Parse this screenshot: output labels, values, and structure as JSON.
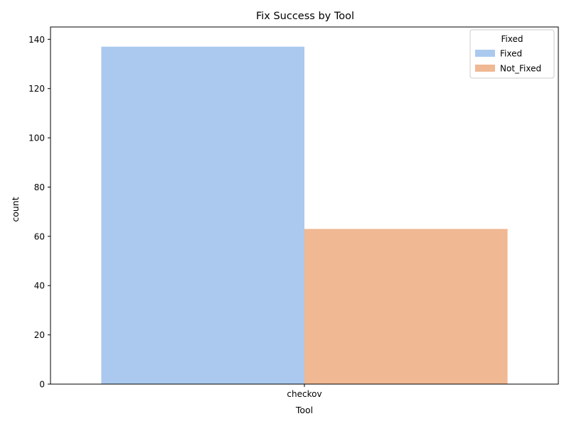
{
  "chart_data": {
    "type": "bar",
    "title": "Fix Success by Tool",
    "xlabel": "Tool",
    "ylabel": "count",
    "categories": [
      "checkov"
    ],
    "series": [
      {
        "name": "Fixed",
        "values": [
          137
        ],
        "color": "#abc9ee"
      },
      {
        "name": "Not_Fixed",
        "values": [
          63
        ],
        "color": "#f0b893"
      }
    ],
    "ylim": [
      0,
      145
    ],
    "yticks": [
      "0",
      "20",
      "40",
      "60",
      "80",
      "100",
      "120",
      "140"
    ],
    "legend": {
      "title": "Fixed",
      "placement": "top-right"
    },
    "grid": false
  }
}
